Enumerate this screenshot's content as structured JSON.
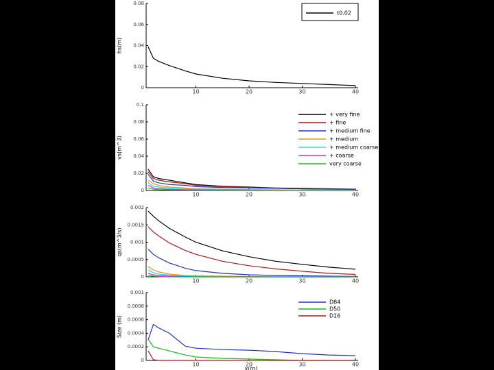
{
  "chart_data": [
    {
      "type": "line",
      "ylabel": "hs(m)",
      "xlim": [
        0,
        40
      ],
      "xticks": [
        10,
        20,
        30,
        40
      ],
      "ylim": [
        0,
        0.08
      ],
      "yticks": [
        0,
        0.02,
        0.04,
        0.06,
        0.08
      ],
      "legend": "upper right",
      "x": [
        1,
        2,
        3,
        5,
        8,
        10,
        15,
        20,
        25,
        30,
        35,
        40
      ],
      "series": [
        {
          "name": "t0.02",
          "color": "#000000",
          "values": [
            0.039,
            0.028,
            0.025,
            0.021,
            0.016,
            0.013,
            0.009,
            0.0065,
            0.005,
            0.004,
            0.003,
            0.002
          ]
        }
      ]
    },
    {
      "type": "line",
      "ylabel": "vs(m^3)",
      "xlim": [
        0,
        40
      ],
      "xticks": [
        10,
        20,
        30,
        40
      ],
      "ylim": [
        0,
        0.1
      ],
      "yticks": [
        0,
        0.02,
        0.04,
        0.06,
        0.08,
        0.1
      ],
      "legend": "upper right",
      "x": [
        1,
        2,
        3,
        5,
        8,
        10,
        15,
        20,
        25,
        30,
        35,
        40
      ],
      "series": [
        {
          "name": "+ very fine",
          "color": "#000000",
          "values": [
            0.025,
            0.016,
            0.014,
            0.012,
            0.009,
            0.007,
            0.005,
            0.004,
            0.003,
            0.0025,
            0.002,
            0.0015
          ]
        },
        {
          "name": "+ fine",
          "color": "#b01818",
          "values": [
            0.022,
            0.014,
            0.012,
            0.01,
            0.008,
            0.006,
            0.0045,
            0.0035,
            0.0027,
            0.002,
            0.0016,
            0.0012
          ]
        },
        {
          "name": "+ medium fine",
          "color": "#2030c0",
          "values": [
            0.019,
            0.011,
            0.009,
            0.007,
            0.006,
            0.0045,
            0.0035,
            0.003,
            0.0025,
            0.002,
            0.0015,
            0.001
          ]
        },
        {
          "name": "+ medium",
          "color": "#f09010",
          "values": [
            0.012,
            0.008,
            0.006,
            0.004,
            0.003,
            0.002,
            0.0015,
            0.001,
            0.0008,
            0.0006,
            0.0005,
            0.0004
          ]
        },
        {
          "name": "+ medium coarse",
          "color": "#20e0e0",
          "values": [
            0.009,
            0.005,
            0.004,
            0.003,
            0.002,
            0.0015,
            0.001,
            0.0008,
            0.0006,
            0.0005,
            0.0004,
            0.0003
          ]
        },
        {
          "name": "+ coarse",
          "color": "#e020e0",
          "values": [
            0.006,
            0.003,
            0.002,
            0.0015,
            0.001,
            0.0008,
            0.0006,
            0.0005,
            0.0004,
            0.0003,
            0.0002,
            0.0002
          ]
        },
        {
          "name": "very coarse",
          "color": "#10c010",
          "values": [
            0.003,
            0.0015,
            0.001,
            0.0008,
            0.0006,
            0.0005,
            0.0004,
            0.0003,
            0.0002,
            0.0002,
            0.0001,
            0.0001
          ]
        }
      ]
    },
    {
      "type": "line",
      "ylabel": "qs(m^3/s)",
      "xlim": [
        0,
        40
      ],
      "xticks": [
        10,
        20,
        30,
        40
      ],
      "ylim": [
        0,
        0.002
      ],
      "yticks": [
        0,
        0.0005,
        0.001,
        0.0015,
        0.002
      ],
      "x": [
        1,
        2,
        3,
        5,
        8,
        10,
        15,
        20,
        25,
        30,
        35,
        40
      ],
      "series": [
        {
          "color": "#000000",
          "values": [
            0.0019,
            0.00175,
            0.00162,
            0.0014,
            0.00115,
            0.001,
            0.00075,
            0.00058,
            0.00045,
            0.00036,
            0.00028,
            0.00022
          ]
        },
        {
          "color": "#b01818",
          "values": [
            0.00145,
            0.0013,
            0.00118,
            0.00098,
            0.00076,
            0.00065,
            0.00045,
            0.00032,
            0.00023,
            0.00016,
            0.0001,
            7e-05
          ]
        },
        {
          "color": "#2030c0",
          "values": [
            0.0008,
            0.00065,
            0.00055,
            0.0004,
            0.00025,
            0.00018,
            0.0001,
            6e-05,
            4e-05,
            3e-05,
            2e-05,
            1e-05
          ]
        },
        {
          "color": "#f09010",
          "values": [
            0.0003,
            0.0002,
            0.00014,
            8e-05,
            4e-05,
            3e-05,
            2e-05,
            1e-05,
            0,
            0,
            0,
            0
          ]
        },
        {
          "color": "#20e0e0",
          "values": [
            0.0002,
            0.00012,
            8e-05,
            5e-05,
            3e-05,
            2e-05,
            1e-05,
            0,
            0,
            0,
            0,
            0
          ]
        },
        {
          "color": "#e020e0",
          "values": [
            0.0001,
            6e-05,
            4e-05,
            2e-05,
            1e-05,
            0,
            0,
            0,
            0,
            0,
            0,
            0
          ]
        },
        {
          "color": "#10c010",
          "values": [
            4e-05,
            2e-05,
            1e-05,
            0,
            0,
            0,
            0,
            0,
            0,
            0,
            0,
            0
          ]
        }
      ]
    },
    {
      "type": "line",
      "ylabel": "Size (m)",
      "xlabel": "x(m)",
      "xlim": [
        0,
        40
      ],
      "xticks": [
        10,
        20,
        30,
        40
      ],
      "ylim": [
        0,
        0.001
      ],
      "yticks": [
        0,
        0.0002,
        0.0004,
        0.0006,
        0.0008,
        0.001
      ],
      "legend": "upper right",
      "x": [
        1,
        2,
        3,
        5,
        8,
        10,
        15,
        20,
        25,
        30,
        35,
        40
      ],
      "series": [
        {
          "name": "D84",
          "color": "#2030c0",
          "values": [
            0.0003,
            0.00053,
            0.00048,
            0.0004,
            0.00021,
            0.00018,
            0.00016,
            0.00015,
            0.00013,
            0.0001,
            8e-05,
            7e-05
          ]
        },
        {
          "name": "D50",
          "color": "#10c010",
          "values": [
            0.00032,
            0.0002,
            0.00018,
            0.00014,
            8e-05,
            5e-05,
            3e-05,
            2e-05,
            1e-05,
            0,
            0,
            0
          ]
        },
        {
          "name": "D16",
          "color": "#b01818",
          "values": [
            0.00014,
            1e-05,
            0,
            0,
            0,
            0,
            0,
            0,
            0,
            0,
            0,
            0
          ]
        }
      ]
    }
  ]
}
